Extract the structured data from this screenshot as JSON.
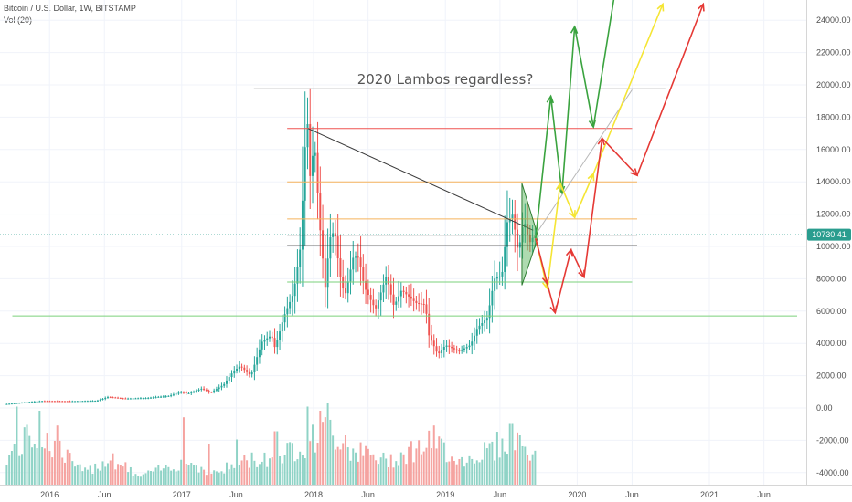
{
  "header": {
    "title": "Bitcoin / U.S. Dollar, 1W, BITSTAMP",
    "volume_label": "Vol (20)"
  },
  "price_badge": "10730.41",
  "colors": {
    "bull": "#26a69a",
    "bull_vol": "#8fd3c6",
    "bear": "#ef5350",
    "bear_vol": "#f5a3a0",
    "green_arrow": "#3aa33f",
    "yellow_arrow": "#f5e534",
    "red_arrow": "#e53935",
    "orange_level": "#f5b35c",
    "support_green": "#7bd17b",
    "resistance_red": "#ef5350",
    "badge": "#2a9d8f"
  },
  "chart_data": {
    "type": "candlestick",
    "title": "Bitcoin / U.S. Dollar, 1W, BITSTAMP",
    "annotation": "2020 Lambos regardless?",
    "x_ticks": [
      "2016",
      "Jun",
      "2017",
      "Jun",
      "2018",
      "Jun",
      "2019",
      "Jun",
      "2020",
      "Jun",
      "2021",
      "Jun"
    ],
    "x_tick_dates": [
      "2016-01-01",
      "2016-06-01",
      "2017-01-01",
      "2017-06-01",
      "2018-01-01",
      "2018-06-01",
      "2019-01-01",
      "2019-06-01",
      "2020-01-01",
      "2020-06-01",
      "2021-01-01",
      "2021-06-01"
    ],
    "y_ticks": [
      "24000.00",
      "22000.00",
      "20000.00",
      "18000.00",
      "16000.00",
      "14000.00",
      "12000.00",
      "10000.00",
      "8000.00",
      "6000.00",
      "4000.00",
      "2000.00",
      "0.00",
      "-2000.00",
      "-4000.00"
    ],
    "y_tick_values": [
      24000,
      22000,
      20000,
      18000,
      16000,
      14000,
      12000,
      10000,
      8000,
      6000,
      4000,
      2000,
      0,
      -2000,
      -4000
    ],
    "ylim": [
      -4500,
      25600
    ],
    "x_range": [
      "2015-09-01",
      "2021-09-01"
    ],
    "last_price": 10730.41,
    "price_path": [
      [
        "2015-09-01",
        230
      ],
      [
        "2015-11-01",
        360
      ],
      [
        "2015-12-15",
        430
      ],
      [
        "2016-03-01",
        420
      ],
      [
        "2016-05-15",
        450
      ],
      [
        "2016-06-15",
        680
      ],
      [
        "2016-08-01",
        580
      ],
      [
        "2016-10-01",
        620
      ],
      [
        "2016-12-01",
        750
      ],
      [
        "2017-01-05",
        1000
      ],
      [
        "2017-01-20",
        880
      ],
      [
        "2017-03-01",
        1200
      ],
      [
        "2017-03-25",
        950
      ],
      [
        "2017-05-01",
        1450
      ],
      [
        "2017-05-25",
        2200
      ],
      [
        "2017-06-15",
        2600
      ],
      [
        "2017-07-15",
        2000
      ],
      [
        "2017-08-15",
        4100
      ],
      [
        "2017-09-10",
        4500
      ],
      [
        "2017-09-20",
        3700
      ],
      [
        "2017-10-15",
        5700
      ],
      [
        "2017-11-10",
        7100
      ],
      [
        "2017-11-28",
        9800
      ],
      [
        "2017-12-10",
        15000
      ],
      [
        "2017-12-17",
        19000
      ],
      [
        "2017-12-24",
        14000
      ],
      [
        "2018-01-07",
        16500
      ],
      [
        "2018-01-21",
        11500
      ],
      [
        "2018-02-06",
        7500
      ],
      [
        "2018-02-18",
        10500
      ],
      [
        "2018-03-04",
        11000
      ],
      [
        "2018-03-18",
        8300
      ],
      [
        "2018-04-01",
        6900
      ],
      [
        "2018-04-25",
        9400
      ],
      [
        "2018-05-10",
        9300
      ],
      [
        "2018-05-25",
        7500
      ],
      [
        "2018-06-25",
        6100
      ],
      [
        "2018-07-25",
        8200
      ],
      [
        "2018-08-15",
        6300
      ],
      [
        "2018-09-05",
        7300
      ],
      [
        "2018-10-15",
        6500
      ],
      [
        "2018-11-10",
        6400
      ],
      [
        "2018-11-20",
        4500
      ],
      [
        "2018-12-15",
        3300
      ],
      [
        "2019-01-05",
        3900
      ],
      [
        "2019-02-10",
        3500
      ],
      [
        "2019-03-15",
        3900
      ],
      [
        "2019-04-05",
        5000
      ],
      [
        "2019-05-01",
        5600
      ],
      [
        "2019-05-20",
        8000
      ],
      [
        "2019-06-10",
        8200
      ],
      [
        "2019-06-25",
        11500
      ],
      [
        "2019-07-10",
        12000
      ],
      [
        "2019-07-25",
        9600
      ],
      [
        "2019-08-10",
        11700
      ],
      [
        "2019-08-25",
        10200
      ],
      [
        "2019-09-08",
        10700
      ]
    ],
    "volume_path": [
      [
        "2015-09-01",
        0.35
      ],
      [
        "2015-11-15",
        0.65
      ],
      [
        "2016-01-15",
        0.5
      ],
      [
        "2016-04-01",
        0.15
      ],
      [
        "2016-06-15",
        0.35
      ],
      [
        "2016-09-01",
        0.1
      ],
      [
        "2017-01-05",
        0.3
      ],
      [
        "2017-04-01",
        0.15
      ],
      [
        "2017-06-15",
        0.3
      ],
      [
        "2017-09-15",
        0.35
      ],
      [
        "2017-12-15",
        0.55
      ],
      [
        "2018-02-10",
        0.7
      ],
      [
        "2018-04-15",
        0.45
      ],
      [
        "2018-07-15",
        0.3
      ],
      [
        "2018-11-25",
        0.55
      ],
      [
        "2019-02-15",
        0.3
      ],
      [
        "2019-05-20",
        0.5
      ],
      [
        "2019-07-15",
        0.6
      ],
      [
        "2019-09-08",
        0.3
      ]
    ],
    "vol_spikes": [
      [
        "2015-10-01",
        0.95
      ],
      [
        "2015-12-01",
        0.9
      ],
      [
        "2016-01-20",
        0.72
      ],
      [
        "2017-01-05",
        0.82
      ],
      [
        "2017-03-15",
        0.5
      ],
      [
        "2017-06-01",
        0.55
      ],
      [
        "2017-09-15",
        0.65
      ],
      [
        "2017-12-10",
        0.95
      ],
      [
        "2018-01-14",
        0.9
      ],
      [
        "2018-02-06",
        1.0
      ],
      [
        "2018-03-25",
        0.6
      ],
      [
        "2018-11-25",
        0.72
      ],
      [
        "2018-12-15",
        0.55
      ],
      [
        "2019-06-28",
        0.75
      ],
      [
        "2019-07-20",
        0.6
      ]
    ],
    "horizontal_levels": [
      {
        "name": "ath-resistance",
        "y": 19750,
        "from": "2017-07-20",
        "to": "2020-09-01",
        "color": "#3a3a3a"
      },
      {
        "name": "red-resistance",
        "y": 17300,
        "from": "2017-10-20",
        "to": "2020-06-01",
        "color": "#ef5350"
      },
      {
        "name": "orange-level-high",
        "y": 14000,
        "from": "2017-10-20",
        "to": "2020-06-15",
        "color": "#f5b35c"
      },
      {
        "name": "orange-level-low",
        "y": 11700,
        "from": "2017-10-20",
        "to": "2020-06-15",
        "color": "#f5b35c"
      },
      {
        "name": "black-level-upper",
        "y": 10700,
        "from": "2017-10-20",
        "to": "2020-06-15",
        "color": "#3a3a3a"
      },
      {
        "name": "black-level-lower",
        "y": 10050,
        "from": "2017-10-20",
        "to": "2020-06-15",
        "color": "#3a3a3a"
      },
      {
        "name": "green-support",
        "y": 7800,
        "from": "2017-10-20",
        "to": "2020-06-01",
        "color": "#7bd17b"
      },
      {
        "name": "long-support",
        "y": 5700,
        "from": "2015-09-20",
        "to": "2021-09-01",
        "color": "#7bd17b"
      }
    ],
    "trend_lines": [
      {
        "name": "downtrend-line",
        "points": [
          [
            "2017-12-17",
            17300
          ],
          [
            "2019-09-01",
            11000
          ]
        ],
        "color": "#3a3a3a"
      },
      {
        "name": "projection-line",
        "points": [
          [
            "2019-09-01",
            10500
          ],
          [
            "2020-06-01",
            19700
          ]
        ],
        "color": "#b7b7b7"
      }
    ],
    "triangle": [
      [
        "2019-08-01",
        13900
      ],
      [
        "2019-09-15",
        10600
      ],
      [
        "2019-08-01",
        7600
      ]
    ],
    "arrows": [
      {
        "name": "green-path",
        "color": "#3aa33f",
        "points": [
          [
            "2019-09-08",
            10500
          ],
          [
            "2019-10-20",
            19300
          ],
          [
            "2019-11-20",
            13300
          ],
          [
            "2019-12-25",
            23600
          ],
          [
            "2020-02-15",
            17400
          ],
          [
            "2020-04-20",
            26500
          ]
        ]
      },
      {
        "name": "yellow-path",
        "color": "#f5e534",
        "points": [
          [
            "2019-09-08",
            10500
          ],
          [
            "2019-10-10",
            7400
          ],
          [
            "2019-11-15",
            13900
          ],
          [
            "2019-12-25",
            11800
          ],
          [
            "2020-02-15",
            14500
          ],
          [
            "2020-08-25",
            25000
          ]
        ]
      },
      {
        "name": "red-path",
        "color": "#e53935",
        "points": [
          [
            "2019-09-08",
            10500
          ],
          [
            "2019-10-10",
            7700
          ],
          [
            "2019-11-01",
            5900
          ],
          [
            "2019-12-15",
            9800
          ],
          [
            "2020-01-20",
            8100
          ],
          [
            "2020-03-10",
            16700
          ],
          [
            "2020-06-15",
            14400
          ],
          [
            "2020-12-15",
            25000
          ]
        ]
      }
    ]
  }
}
